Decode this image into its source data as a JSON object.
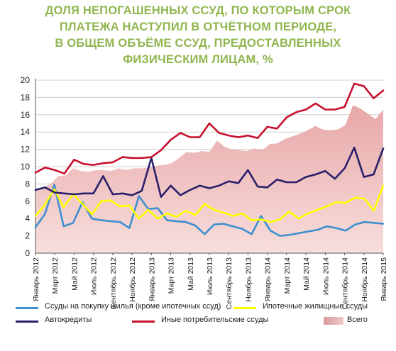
{
  "title_lines": [
    "ДОЛЯ  НЕПОГАШЕННЫХ ССУД, ПО КОТОРЫМ СРОК",
    "ПЛАТЕЖА НАСТУПИЛ В ОТЧЁТНОМ ПЕРИОДЕ,",
    "В ОБЩЕМ ОБЪЁМЕ ССУД, ПРЕДОСТАВЛЕННЫХ",
    "ФИЗИЧЕСКИМ ЛИЦАМ, %"
  ],
  "chart_data": {
    "type": "line",
    "title": "ДОЛЯ НЕПОГАШЕННЫХ ССУД, ПО КОТОРЫМ СРОК ПЛАТЕЖА НАСТУПИЛ В ОТЧЁТНОМ ПЕРИОДЕ, В ОБЩЕМ ОБЪЁМЕ ССУД, ПРЕДОСТАВЛЕННЫХ ФИЗИЧЕСКИМ ЛИЦАМ, %",
    "ylim": [
      0,
      20
    ],
    "yticks": [
      0,
      2,
      4,
      6,
      8,
      10,
      12,
      14,
      16,
      18,
      20
    ],
    "grid": true,
    "legend_position": "bottom",
    "x_tick_labels": [
      "Январь 2012",
      "Март 2012",
      "Май 2012",
      "Июль 2012",
      "Сентябрь 2012",
      "Ноябрь 2012",
      "Январь 2013",
      "Март 2013",
      "Май 2013",
      "Июль 2013",
      "Сентябрь 2013",
      "Ноябрь 2013",
      "Январь 2014",
      "Март 2014",
      "Май 2014",
      "Июль 2014",
      "Сентябрь 2014",
      "Ноябрь 2014",
      "Январь 2015"
    ],
    "series": [
      {
        "name": "Всего",
        "kind": "area",
        "color": "#e8b0ae",
        "values": [
          7.2,
          7.6,
          8.0,
          8.9,
          9.0,
          9.8,
          9.5,
          9.4,
          9.6,
          9.6,
          9.5,
          9.8,
          9.6,
          9.8,
          9.8,
          9.9,
          10.1,
          10.2,
          10.4,
          11.0,
          11.7,
          11.6,
          11.8,
          11.7,
          13.0,
          12.3,
          12.0,
          11.9,
          11.8,
          12.1,
          11.9,
          12.6,
          12.7,
          13.2,
          13.5,
          13.8,
          14.2,
          14.7,
          14.3,
          14.2,
          14.3,
          14.8,
          17.1,
          16.7,
          16.1,
          15.5,
          16.6
        ]
      },
      {
        "name": "Ссуды на покупку жилья (кроме ипотечных ссуд)",
        "kind": "line",
        "color": "#3d8fd0",
        "values": [
          3.0,
          4.5,
          7.9,
          3.1,
          3.5,
          5.9,
          4.0,
          3.8,
          3.7,
          3.6,
          2.9,
          6.6,
          5.1,
          5.2,
          3.8,
          3.7,
          3.6,
          3.2,
          2.2,
          3.3,
          3.4,
          3.1,
          2.8,
          2.2,
          4.3,
          2.6,
          2.0,
          2.1,
          2.3,
          2.5,
          2.7,
          3.1,
          2.9,
          2.6,
          3.3,
          3.6,
          3.5,
          3.4
        ]
      },
      {
        "name": "Ипотечные жилищные ссуды",
        "kind": "line",
        "color": "#ffff00",
        "values": [
          4.3,
          5.6,
          7.4,
          5.3,
          6.8,
          5.7,
          4.5,
          6.0,
          6.1,
          5.4,
          5.5,
          4.0,
          5.0,
          4.0,
          4.6,
          4.2,
          4.9,
          4.4,
          5.7,
          5.0,
          4.7,
          4.3,
          4.6,
          3.8,
          3.9,
          3.6,
          3.9,
          4.8,
          4.0,
          4.6,
          5.0,
          5.4,
          5.9,
          5.8,
          6.4,
          6.3,
          4.9,
          7.8
        ]
      },
      {
        "name": "Автокредиты",
        "kind": "line",
        "color": "#2a1f6a",
        "values": [
          7.3,
          7.6,
          7.0,
          6.9,
          6.8,
          6.9,
          6.9,
          8.9,
          6.8,
          6.9,
          6.7,
          7.2,
          11.0,
          6.5,
          7.8,
          6.7,
          7.3,
          7.8,
          7.5,
          7.8,
          8.3,
          8.1,
          9.6,
          7.7,
          7.6,
          8.5,
          8.2,
          8.2,
          8.8,
          9.1,
          9.5,
          8.6,
          9.8,
          12.2,
          8.8,
          9.1,
          12.1
        ]
      },
      {
        "name": "Иные потребительские ссуды",
        "kind": "line",
        "color": "#c8102e",
        "values": [
          9.3,
          9.9,
          9.6,
          9.2,
          10.8,
          10.3,
          10.2,
          10.4,
          10.5,
          11.1,
          11.0,
          11.0,
          11.1,
          11.9,
          13.1,
          13.9,
          13.4,
          13.4,
          15.0,
          13.9,
          13.6,
          13.4,
          13.6,
          13.3,
          14.6,
          14.4,
          15.7,
          16.3,
          16.6,
          17.3,
          16.6,
          16.6,
          16.9,
          19.6,
          19.3,
          17.9,
          18.8
        ]
      }
    ]
  }
}
